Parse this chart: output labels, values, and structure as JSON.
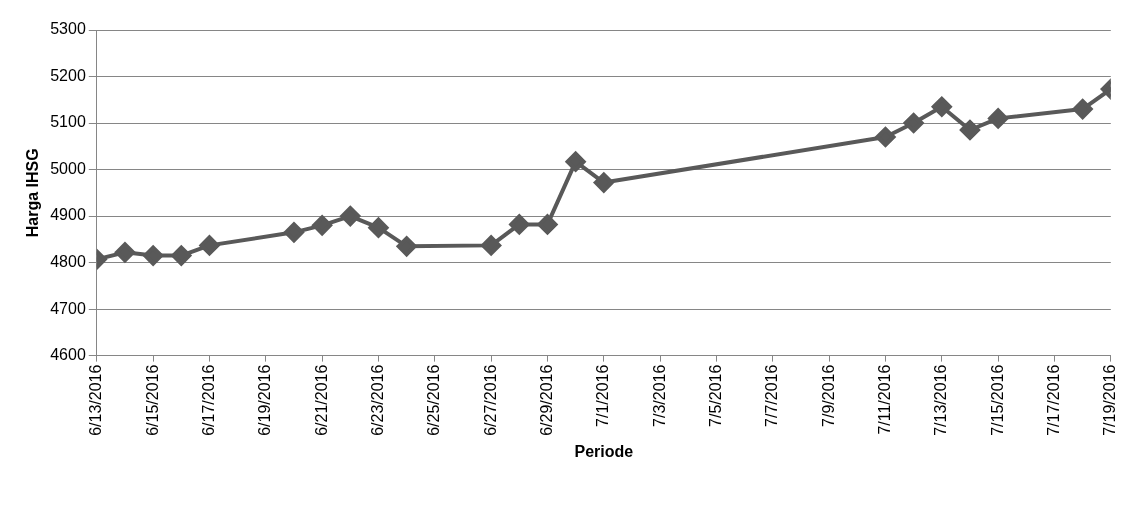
{
  "chart_data": {
    "type": "line",
    "xlabel": "Periode",
    "ylabel": "Harga IHSG",
    "x": [
      "2016-06-13",
      "2016-06-14",
      "2016-06-15",
      "2016-06-16",
      "2016-06-17",
      "2016-06-20",
      "2016-06-21",
      "2016-06-22",
      "2016-06-23",
      "2016-06-24",
      "2016-06-27",
      "2016-06-28",
      "2016-06-29",
      "2016-06-30",
      "2016-07-01",
      "2016-07-11",
      "2016-07-12",
      "2016-07-13",
      "2016-07-14",
      "2016-07-15",
      "2016-07-18",
      "2016-07-19"
    ],
    "series": [
      {
        "color": "#595959",
        "values": [
          4807,
          4822,
          4815,
          4815,
          4837,
          4865,
          4880,
          4900,
          4875,
          4835,
          4837,
          4882,
          4882,
          5017,
          4972,
          5070,
          5100,
          5135,
          5085,
          5110,
          5130,
          5173
        ]
      }
    ],
    "ylim": [
      4600,
      5300
    ],
    "yticks": [
      4600,
      4700,
      4800,
      4900,
      5000,
      5100,
      5200,
      5300
    ],
    "xlim": [
      "2016-06-13",
      "2016-07-19"
    ],
    "xticks": [
      {
        "value": "2016-06-13",
        "label": "6/13/2016"
      },
      {
        "value": "2016-06-15",
        "label": "6/15/2016"
      },
      {
        "value": "2016-06-17",
        "label": "6/17/2016"
      },
      {
        "value": "2016-06-19",
        "label": "6/19/2016"
      },
      {
        "value": "2016-06-21",
        "label": "6/21/2016"
      },
      {
        "value": "2016-06-23",
        "label": "6/23/2016"
      },
      {
        "value": "2016-06-25",
        "label": "6/25/2016"
      },
      {
        "value": "2016-06-27",
        "label": "6/27/2016"
      },
      {
        "value": "2016-06-29",
        "label": "6/29/2016"
      },
      {
        "value": "2016-07-01",
        "label": "7/1/2016"
      },
      {
        "value": "2016-07-03",
        "label": "7/3/2016"
      },
      {
        "value": "2016-07-05",
        "label": "7/5/2016"
      },
      {
        "value": "2016-07-07",
        "label": "7/7/2016"
      },
      {
        "value": "2016-07-09",
        "label": "7/9/2016"
      },
      {
        "value": "2016-07-11",
        "label": "7/11/2016"
      },
      {
        "value": "2016-07-13",
        "label": "7/13/2016"
      },
      {
        "value": "2016-07-15",
        "label": "7/15/2016"
      },
      {
        "value": "2016-07-17",
        "label": "7/17/2016"
      },
      {
        "value": "2016-07-19",
        "label": "7/19/2016"
      }
    ],
    "grid": "y",
    "legend": false,
    "marker": "diamond",
    "line_style": "solid"
  }
}
